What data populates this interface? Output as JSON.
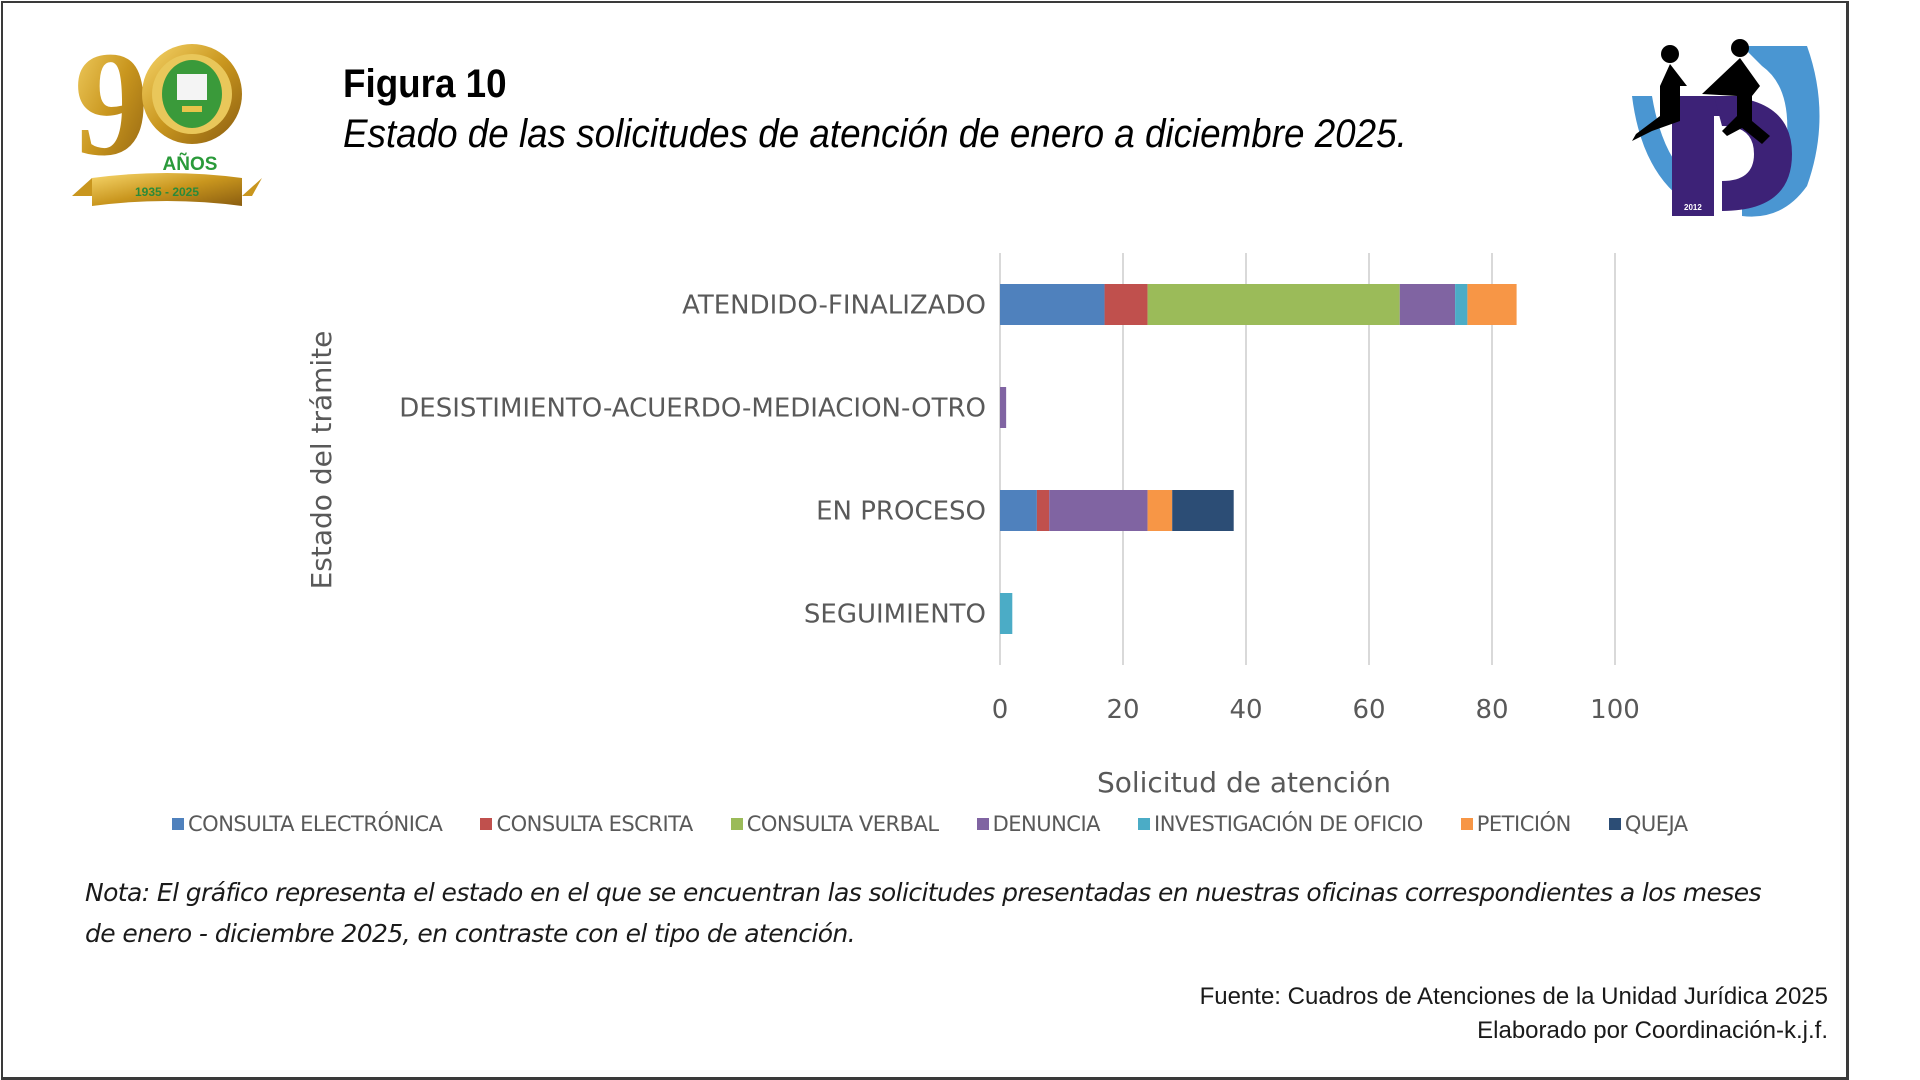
{
  "figure": {
    "number_label": "Figura 10",
    "title": "Estado de las solicitudes de atención de enero a diciembre 2025."
  },
  "logos": {
    "left": {
      "name": "90-anos-anniversary-logo",
      "text_years": "90",
      "text_anos": "AÑOS",
      "text_range": "1935 - 2025"
    },
    "right": {
      "name": "institution-logo",
      "text_year": "2012"
    }
  },
  "chart_data": {
    "type": "bar",
    "orientation": "horizontal",
    "stacked": true,
    "title": "Estado de las solicitudes de atención de enero a diciembre 2025.",
    "xlabel": "Solicitud de atención",
    "ylabel": "Estado del trámite",
    "xlim": [
      0,
      100
    ],
    "xticks": [
      0,
      20,
      40,
      60,
      80,
      100
    ],
    "grid": true,
    "legend_position": "bottom",
    "categories": [
      "ATENDIDO-FINALIZADO",
      "DESISTIMIENTO-ACUERDO-MEDIACION-OTRO",
      "EN PROCESO",
      "SEGUIMIENTO"
    ],
    "series": [
      {
        "name": "CONSULTA ELECTRÓNICA",
        "color": "#4f81bd",
        "values": [
          17,
          0,
          6,
          0
        ]
      },
      {
        "name": "CONSULTA ESCRITA",
        "color": "#c0504d",
        "values": [
          7,
          0,
          2,
          0
        ]
      },
      {
        "name": "CONSULTA VERBAL",
        "color": "#9bbb59",
        "values": [
          41,
          0,
          0,
          0
        ]
      },
      {
        "name": "DENUNCIA",
        "color": "#8064a2",
        "values": [
          9,
          1,
          16,
          0
        ]
      },
      {
        "name": "INVESTIGACIÓN DE OFICIO",
        "color": "#4bacc6",
        "values": [
          2,
          0,
          0,
          2
        ]
      },
      {
        "name": "PETICIÓN",
        "color": "#f79646",
        "values": [
          8,
          0,
          4,
          0
        ]
      },
      {
        "name": "QUEJA",
        "color": "#2c4d75",
        "values": [
          0,
          0,
          10,
          0
        ]
      }
    ]
  },
  "note": "Nota: El gráfico representa el estado  en el que se encuentran las solicitudes presentadas en nuestras oficinas correspondientes a los meses de enero - diciembre 2025, en contraste con el tipo de atención.",
  "source": {
    "line1": "Fuente: Cuadros de Atenciones de la Unidad Jurídica 2025",
    "line2": "Elaborado por Coordinación-k.j.f."
  }
}
